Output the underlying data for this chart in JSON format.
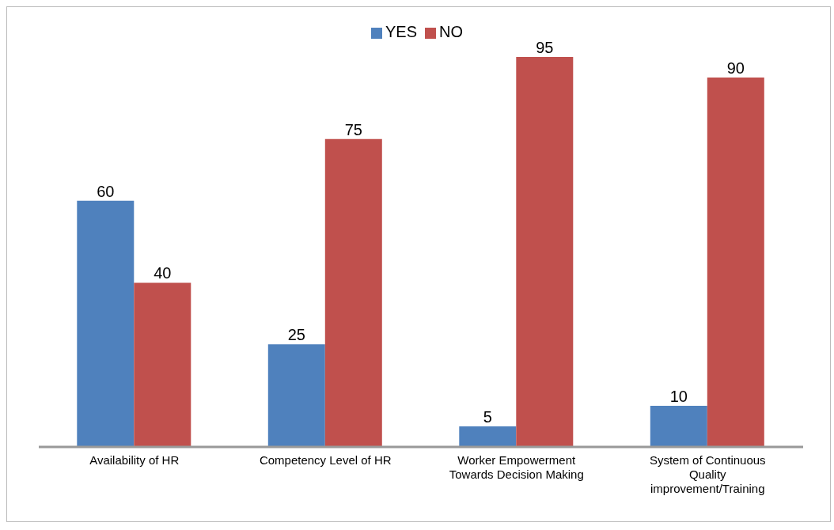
{
  "chart_data": {
    "type": "bar",
    "categories": [
      "Availability of HR",
      "Competency Level of HR",
      "Worker Empowerment Towards Decision Making",
      "System of Continuous Quality improvement/Training"
    ],
    "series": [
      {
        "name": "YES",
        "color": "#4f81bd",
        "values": [
          60,
          25,
          5,
          10
        ]
      },
      {
        "name": "NO",
        "color": "#c0504d",
        "values": [
          40,
          75,
          95,
          90
        ]
      }
    ],
    "data_labels": true,
    "legend": "top",
    "grid": false
  }
}
